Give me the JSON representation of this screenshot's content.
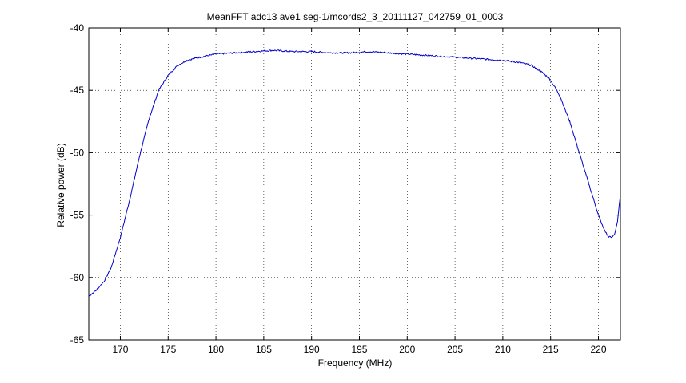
{
  "chart_data": {
    "type": "line",
    "title": "MeanFFT adc13 ave1 seg-1/mcords2_3_20111127_042759_01_0003",
    "xlabel": "Frequency (MHz)",
    "ylabel": "Relative power (dB)",
    "xlim": [
      166.7,
      222.3
    ],
    "ylim": [
      -65,
      -40
    ],
    "grid": true,
    "line_color": "#0000cc",
    "xticks": [
      170,
      175,
      180,
      185,
      190,
      195,
      200,
      205,
      210,
      215,
      220
    ],
    "xtick_labels": [
      "170",
      "175",
      "180",
      "185",
      "190",
      "195",
      "200",
      "205",
      "210",
      "215",
      "220"
    ],
    "yticks": [
      -65,
      -60,
      -55,
      -50,
      -45,
      -40
    ],
    "ytick_labels": [
      "-65",
      "-60",
      "-55",
      "-50",
      "-45",
      "-40"
    ],
    "series": [
      {
        "x": [
          166.7,
          167.5,
          168.3,
          169.0,
          170.0,
          171.0,
          172.0,
          173.0,
          174.0,
          175.0,
          176.0,
          177.0,
          178.0,
          180.0,
          182.0,
          184.0,
          186.0,
          188.0,
          190.0,
          192.0,
          194.0,
          196.0,
          198.0,
          200.0,
          202.0,
          204.0,
          206.0,
          208.0,
          210.0,
          212.0,
          213.0,
          214.0,
          214.8,
          215.5,
          216.0,
          217.0,
          218.0,
          219.0,
          220.0,
          220.5,
          221.0,
          221.4,
          221.7,
          222.0,
          222.1,
          222.3
        ],
        "y": [
          -61.5,
          -61.0,
          -60.3,
          -59.3,
          -56.8,
          -53.7,
          -50.3,
          -47.3,
          -45.0,
          -43.8,
          -43.0,
          -42.6,
          -42.4,
          -42.1,
          -42.0,
          -41.9,
          -41.8,
          -41.9,
          -41.9,
          -42.0,
          -42.0,
          -41.9,
          -42.0,
          -42.1,
          -42.2,
          -42.3,
          -42.4,
          -42.5,
          -42.6,
          -42.8,
          -43.0,
          -43.5,
          -44.0,
          -44.8,
          -45.5,
          -47.5,
          -50.0,
          -52.5,
          -55.0,
          -56.0,
          -56.7,
          -56.8,
          -56.5,
          -55.5,
          -54.8,
          -53.3
        ]
      }
    ]
  }
}
